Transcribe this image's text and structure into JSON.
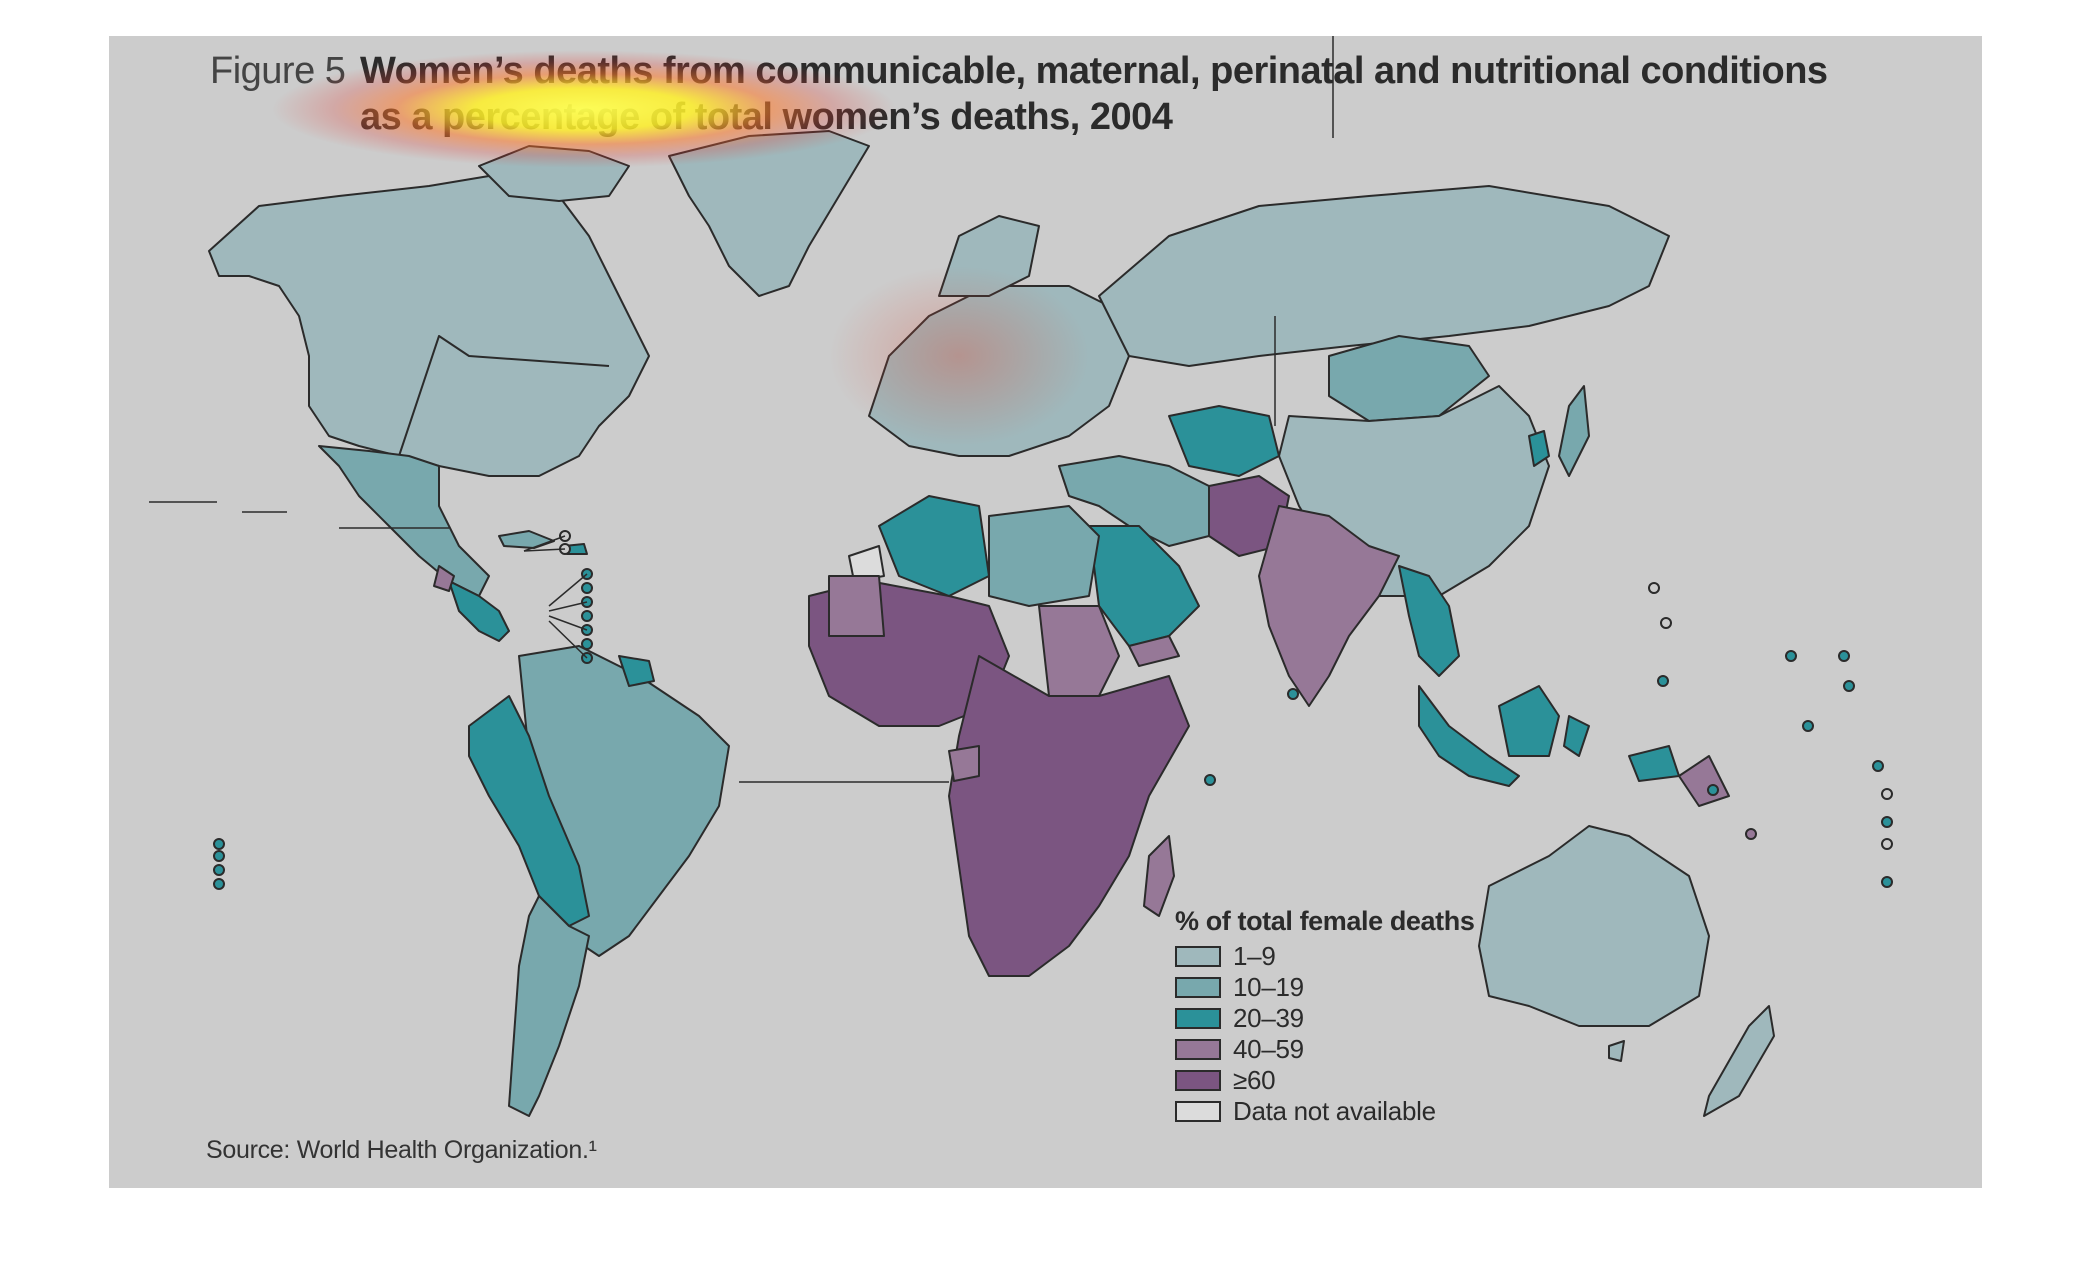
{
  "figure": {
    "label": "Figure 5",
    "title_line1": "Women’s deaths from communicable, maternal, perinatal and nutritional conditions",
    "title_line2": "as a percentage of total women’s deaths, 2004",
    "source": "Source: World Health Organization.¹"
  },
  "legend": {
    "title": "% of total female deaths",
    "items": [
      {
        "label": "1–9",
        "color": "#9fb8bc"
      },
      {
        "label": "10–19",
        "color": "#78a8ad"
      },
      {
        "label": "20–39",
        "color": "#2b9199"
      },
      {
        "label": "40–59",
        "color": "#967897"
      },
      {
        "label": "≥60",
        "color": "#7b5581"
      },
      {
        "label": "Data not available",
        "color": "#dcdcdc"
      }
    ]
  },
  "colors": {
    "background": "#cccccc",
    "border": "#2b2b2b",
    "heatmap_overlay": "#ffe63c"
  },
  "map_data": {
    "categories_by_region": {
      "north_america": "1–9",
      "greenland": "1–9",
      "mexico_central_america": "10–19",
      "guatemala_honduras": "20–39",
      "brazil": "10–19",
      "andean_countries": "20–39",
      "southern_cone": "10–19",
      "europe": "1–9",
      "russia": "1–9",
      "north_africa_algeria": "20–39",
      "north_africa_libya_egypt": "10–19",
      "saudi_arabia": "20–39",
      "west_africa": "≥60",
      "sahel_sudan": "40–59",
      "central_east_southern_africa": "≥60",
      "madagascar": "40–59",
      "south_asia_india": "40–59",
      "pakistan_afghanistan": "≥60",
      "central_asia": "20–39",
      "china": "1–9",
      "mongolia": "10–19",
      "southeast_asia": "20–39",
      "indonesia": "20–39",
      "papua_new_guinea": "40–59",
      "australia_new_zealand": "1–9",
      "japan": "10–19"
    }
  }
}
